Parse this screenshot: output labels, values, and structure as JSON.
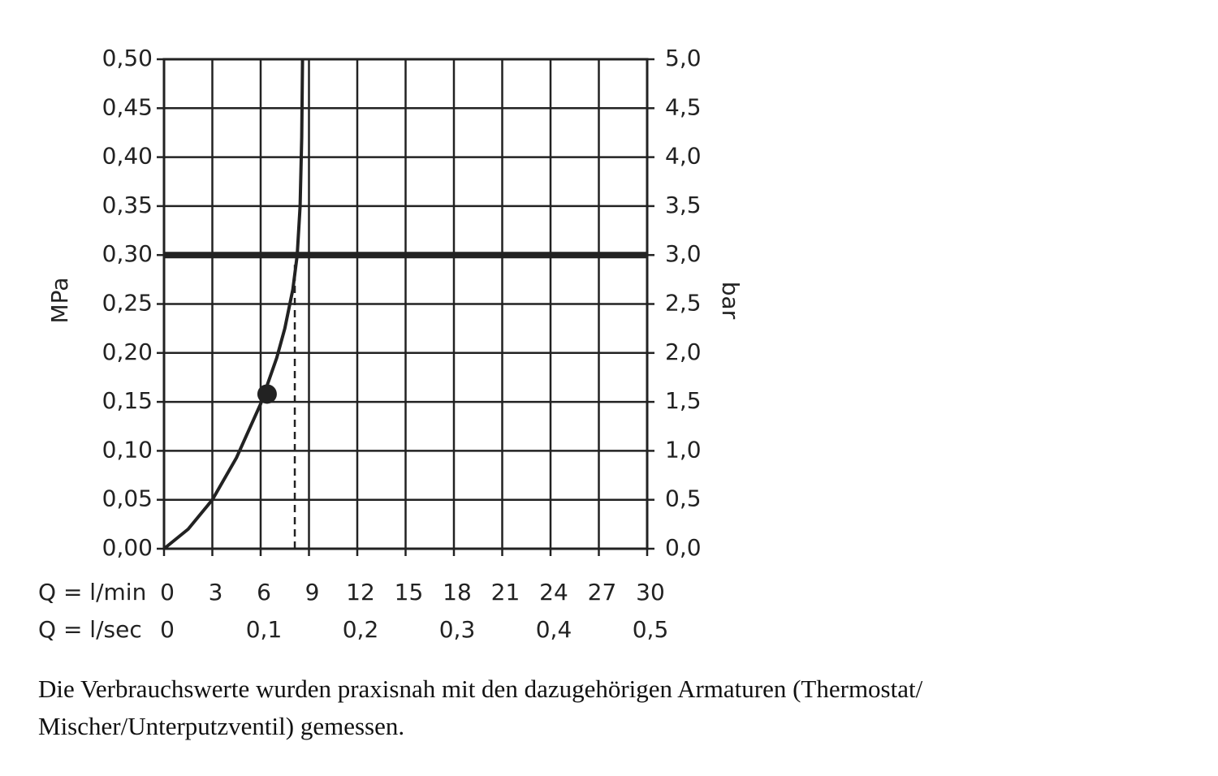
{
  "chart_data": {
    "type": "line",
    "ylabel": "MPa",
    "y2label": "bar",
    "xlabel": "Q = l/min",
    "x2label": "Q = l/sec",
    "xlim": [
      0,
      30
    ],
    "xticks": [
      0,
      3,
      6,
      9,
      12,
      15,
      18,
      21,
      24,
      27,
      30
    ],
    "x2lim": [
      0,
      0.5
    ],
    "x2ticks": [
      0,
      {
        "value": 0.1,
        "label": "0,1"
      },
      {
        "value": 0.2,
        "label": "0,2"
      },
      {
        "value": 0.3,
        "label": "0,3"
      },
      {
        "value": 0.4,
        "label": "0,4"
      },
      {
        "value": 0.5,
        "label": "0,5"
      }
    ],
    "ylim": [
      0,
      0.5
    ],
    "yticks": [
      {
        "value": 0,
        "label": "0,00"
      },
      {
        "value": 0.05,
        "label": "0,05"
      },
      {
        "value": 0.1,
        "label": "0,10"
      },
      {
        "value": 0.15,
        "label": "0,15"
      },
      {
        "value": 0.2,
        "label": "0,20"
      },
      {
        "value": 0.25,
        "label": "0,25"
      },
      {
        "value": 0.3,
        "label": "0,30"
      },
      {
        "value": 0.35,
        "label": "0,35"
      },
      {
        "value": 0.4,
        "label": "0,40"
      },
      {
        "value": 0.45,
        "label": "0,45"
      },
      {
        "value": 0.5,
        "label": "0,50"
      }
    ],
    "y2lim": [
      0,
      5
    ],
    "y2ticks": [
      {
        "value": 0,
        "label": "0,0"
      },
      {
        "value": 0.5,
        "label": "0,5"
      },
      {
        "value": 1,
        "label": "1,0"
      },
      {
        "value": 1.5,
        "label": "1,5"
      },
      {
        "value": 2,
        "label": "2,0"
      },
      {
        "value": 2.5,
        "label": "2,5"
      },
      {
        "value": 3,
        "label": "3,0"
      },
      {
        "value": 3.5,
        "label": "3,5"
      },
      {
        "value": 4,
        "label": "4,0"
      },
      {
        "value": 4.5,
        "label": "4,5"
      },
      {
        "value": 5,
        "label": "5,0"
      }
    ],
    "grid": true,
    "series": [
      {
        "color": "#222222",
        "style": "solid",
        "x": [
          0,
          1.5,
          3,
          4.5,
          6,
          7,
          7.5,
          8,
          8.27,
          8.45,
          8.55,
          8.6
        ],
        "values": [
          0,
          0.02,
          0.05,
          0.093,
          0.148,
          0.195,
          0.225,
          0.265,
          0.3,
          0.35,
          0.42,
          0.5
        ]
      },
      {
        "color": "#222222",
        "style": "thick",
        "x": [
          0,
          30
        ],
        "values": [
          0.3,
          0.3
        ]
      },
      {
        "color": "#222222",
        "style": "dashed",
        "x": [
          8.12,
          8.12
        ],
        "values": [
          0,
          0.29
        ]
      }
    ],
    "markers": {
      "color": "#222222",
      "x": [
        6.4
      ],
      "values": [
        0.158
      ]
    },
    "note": [
      "Die Verbrauchswerte wurden praxisnah mit den dazugehörigen Armaturen (Thermostat/",
      "Mischer/Unterputzventil) gemessen."
    ]
  }
}
